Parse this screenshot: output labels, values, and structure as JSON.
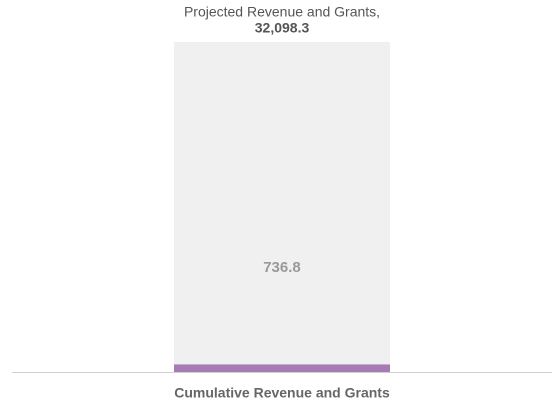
{
  "chart_data": {
    "type": "bar",
    "categories": [
      "Cumulative Revenue and Grants"
    ],
    "values": [
      736.8
    ],
    "color": "#a77bb5",
    "target": {
      "label": "Projected Revenue and Grants,",
      "value": 32098.3,
      "value_label": "32,098.3",
      "color": "#f0f0f0"
    }
  }
}
